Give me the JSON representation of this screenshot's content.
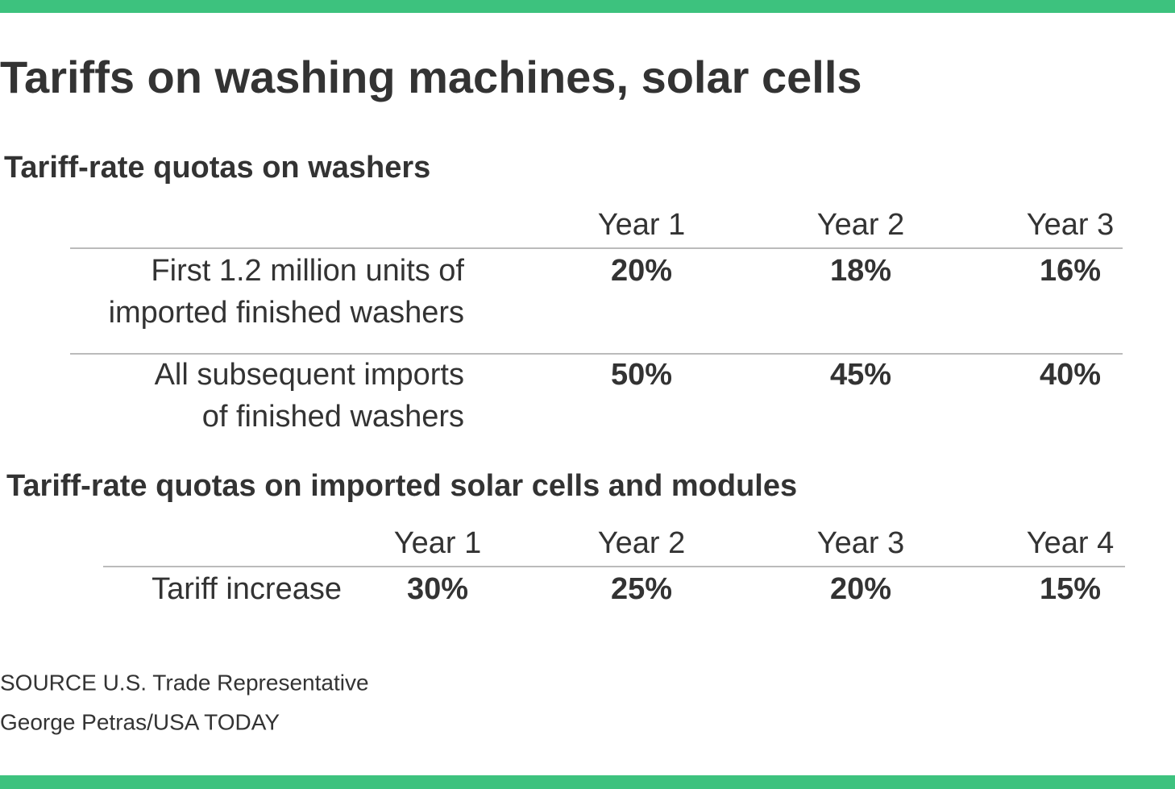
{
  "title": "Tariffs on washing machines, solar cells",
  "tables": [
    {
      "title": "Tariff-rate quotas on washers",
      "columns": [
        "Year 1",
        "Year 2",
        "Year 3"
      ],
      "rows": [
        {
          "label": [
            "First 1.2 million units of",
            "imported finished washers"
          ],
          "values": [
            "20%",
            "18%",
            "16%"
          ]
        },
        {
          "label": [
            "All subsequent imports",
            "of finished washers"
          ],
          "values": [
            "50%",
            "45%",
            "40%"
          ]
        }
      ]
    },
    {
      "title": "Tariff-rate quotas on imported solar cells and modules",
      "columns": [
        "Year 1",
        "Year 2",
        "Year 3",
        "Year 4"
      ],
      "rows": [
        {
          "label": [
            "Tariff increase"
          ],
          "values": [
            "30%",
            "25%",
            "20%",
            "15%"
          ]
        }
      ]
    }
  ],
  "source": "SOURCE U.S. Trade Representative",
  "credit": "George Petras/USA TODAY"
}
